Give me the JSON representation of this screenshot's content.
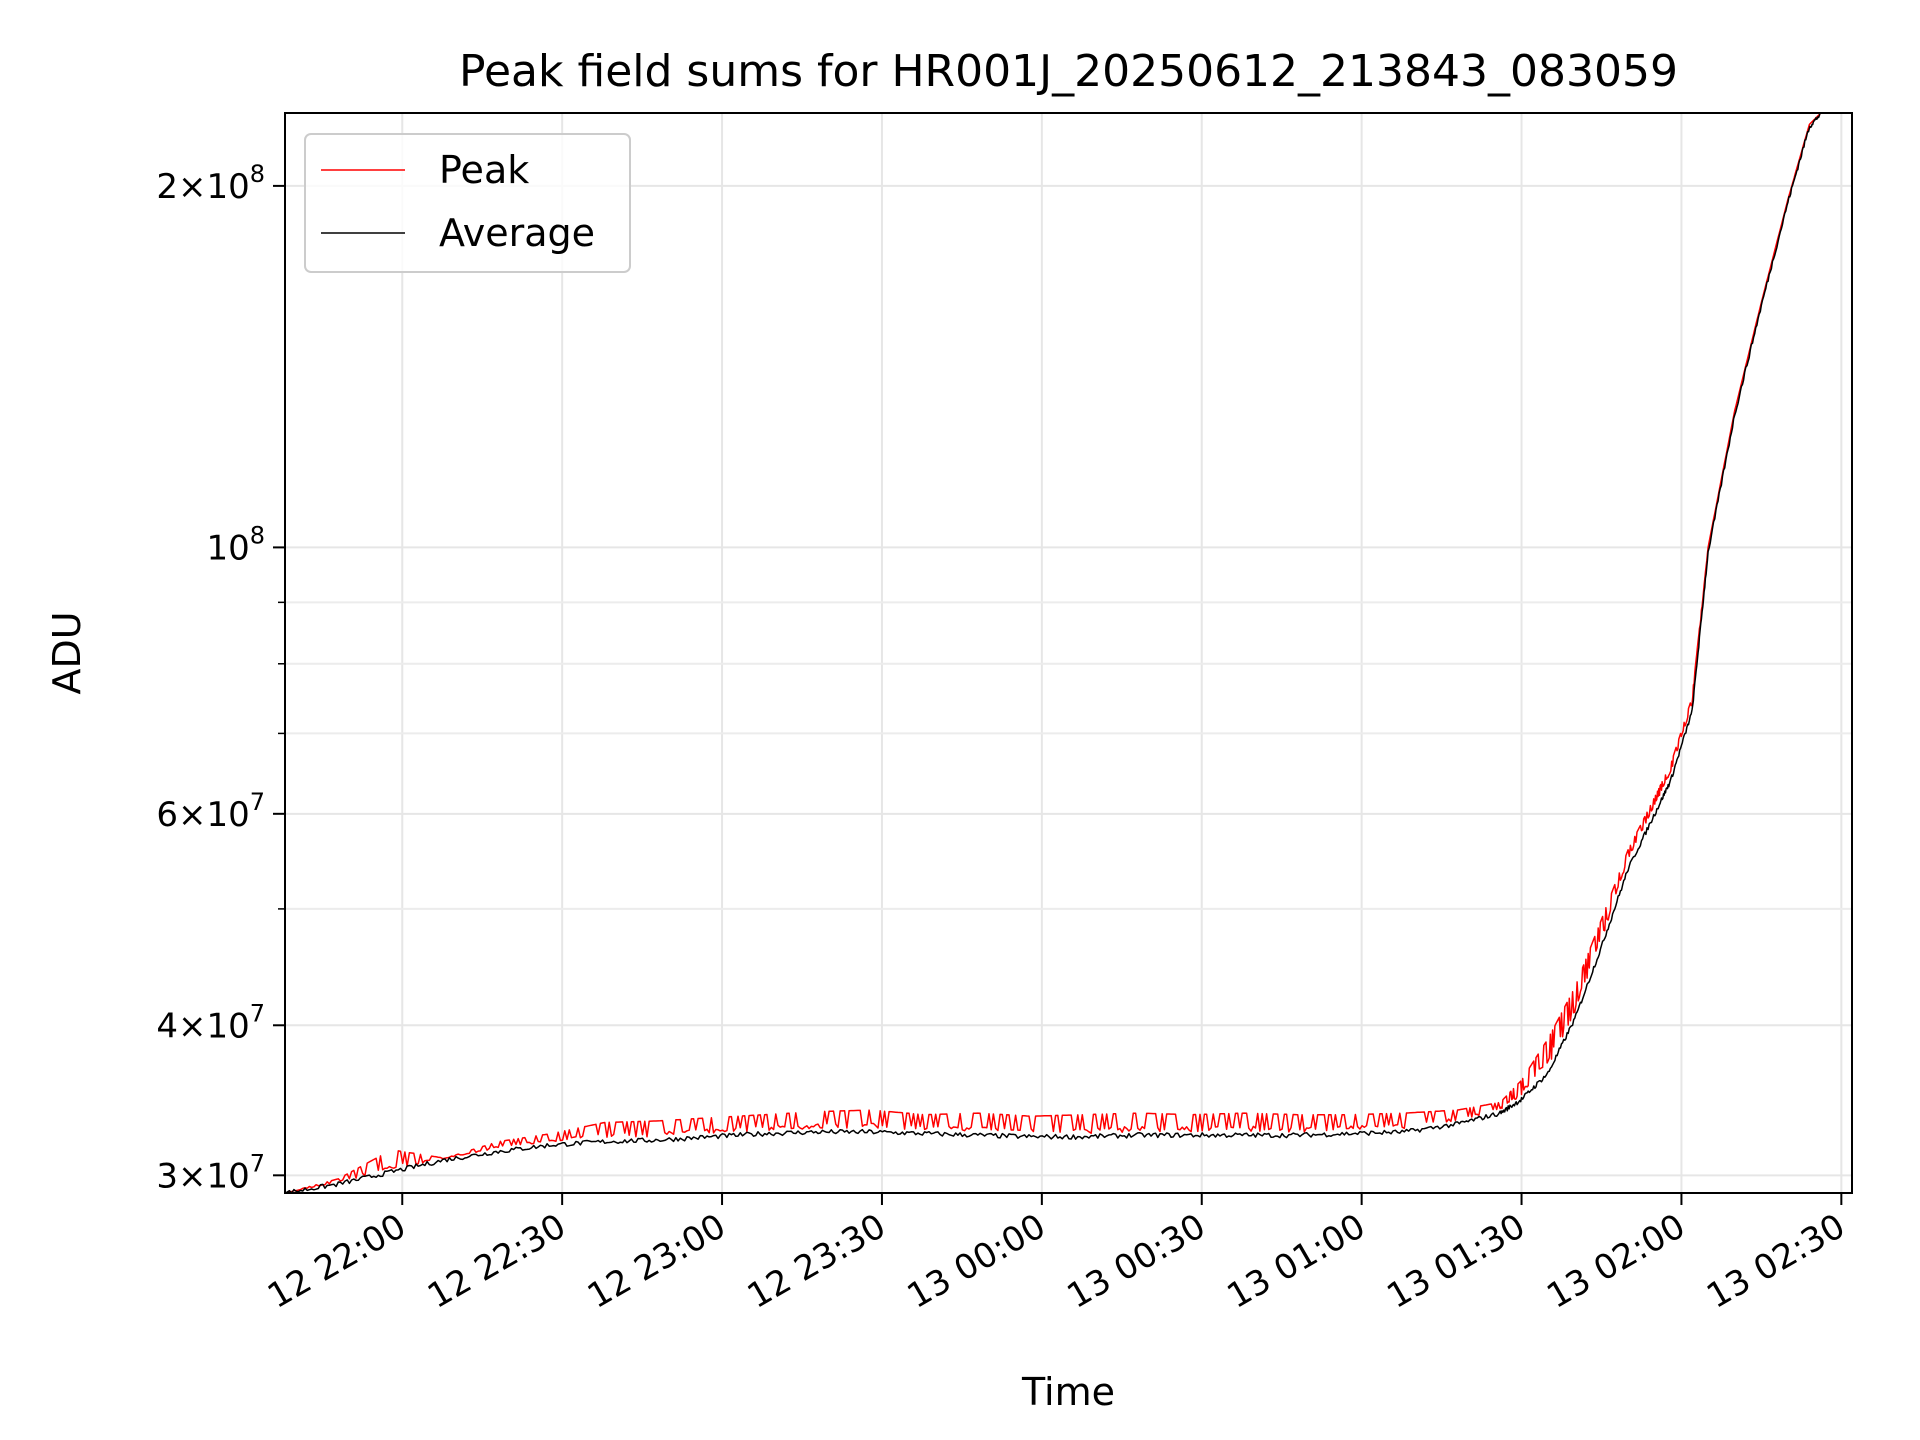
{
  "chart_data": {
    "type": "line",
    "title": "Peak field sums for HR001J_20250612_213843_083059",
    "xlabel": "Time",
    "ylabel": "ADU",
    "y_scale": "log",
    "ylim": [
      29000000,
      230000000
    ],
    "xlim": [
      "12 21:38",
      "13 02:32"
    ],
    "grid": true,
    "legend_position": "upper-left",
    "x_ticks": [
      {
        "value": "12 22:00",
        "label": "12 22:00"
      },
      {
        "value": "12 22:30",
        "label": "12 22:30"
      },
      {
        "value": "12 23:00",
        "label": "12 23:00"
      },
      {
        "value": "12 23:30",
        "label": "12 23:30"
      },
      {
        "value": "13 00:00",
        "label": "13 00:00"
      },
      {
        "value": "13 00:30",
        "label": "13 00:30"
      },
      {
        "value": "13 01:00",
        "label": "13 01:00"
      },
      {
        "value": "13 01:30",
        "label": "13 01:30"
      },
      {
        "value": "13 02:00",
        "label": "13 02:00"
      },
      {
        "value": "13 02:30",
        "label": "13 02:30"
      }
    ],
    "y_ticks": [
      {
        "value": 30000000,
        "mantissa": "3",
        "exp": "7"
      },
      {
        "value": 40000000,
        "mantissa": "4",
        "exp": "7"
      },
      {
        "value": 60000000,
        "mantissa": "6",
        "exp": "7"
      },
      {
        "value": 100000000,
        "mantissa": "",
        "exp": "8"
      },
      {
        "value": 200000000,
        "mantissa": "2",
        "exp": "8"
      }
    ],
    "y_minor_ticks": [
      50000000,
      70000000,
      80000000,
      90000000
    ],
    "series": [
      {
        "name": "Peak",
        "color": "#ff0000",
        "x": [
          "12 21:38",
          "12 21:48",
          "12 21:58",
          "12 22:08",
          "12 22:18",
          "12 22:28",
          "12 22:38",
          "12 22:48",
          "12 22:58",
          "12 23:08",
          "12 23:18",
          "12 23:28",
          "12 23:38",
          "12 23:48",
          "12 23:58",
          "13 00:08",
          "13 00:18",
          "13 00:28",
          "13 00:38",
          "13 00:48",
          "13 00:58",
          "13 01:08",
          "13 01:18",
          "13 01:26",
          "13 01:30",
          "13 01:35",
          "13 01:40",
          "13 01:45",
          "13 01:50",
          "13 01:55",
          "13 01:58",
          "13 02:02",
          "13 02:05",
          "13 02:10",
          "13 02:15",
          "13 02:20",
          "13 02:24",
          "13 02:27"
        ],
        "y": [
          29000000,
          29800000,
          31500000,
          31000000,
          32000000,
          32500000,
          33200000,
          33300000,
          33500000,
          33700000,
          33900000,
          34000000,
          33700000,
          33800000,
          33600000,
          33700000,
          33800000,
          33700000,
          33800000,
          33700000,
          33700000,
          33800000,
          34000000,
          34500000,
          36000000,
          39000000,
          43000000,
          49000000,
          56000000,
          62000000,
          66000000,
          75000000,
          100000000,
          130000000,
          160000000,
          195000000,
          225000000,
          232000000
        ],
        "y_low": [
          29000000,
          29600000,
          30300000,
          31000000,
          31600000,
          32000000,
          32200000,
          32300000,
          32500000,
          32700000,
          32800000,
          32800000,
          32700000,
          32600000,
          32500000,
          32500000,
          32600000,
          32600000,
          32600000,
          32600000,
          32700000,
          32800000,
          33300000,
          34000000,
          35000000,
          37000000,
          41000000,
          47000000,
          55000000,
          61000000,
          65000000,
          74000000,
          100000000,
          130000000,
          160000000,
          195000000,
          225000000,
          232000000
        ]
      },
      {
        "name": "Average",
        "color": "#000000",
        "x": [
          "12 21:38",
          "12 21:48",
          "12 21:58",
          "12 22:08",
          "12 22:18",
          "12 22:28",
          "12 22:38",
          "12 22:48",
          "12 22:58",
          "12 23:08",
          "12 23:18",
          "12 23:28",
          "12 23:38",
          "12 23:48",
          "12 23:58",
          "13 00:08",
          "13 00:18",
          "13 00:28",
          "13 00:38",
          "13 00:48",
          "13 00:58",
          "13 01:08",
          "13 01:18",
          "13 01:26",
          "13 01:30",
          "13 01:35",
          "13 01:40",
          "13 01:45",
          "13 01:50",
          "13 01:55",
          "13 01:58",
          "13 02:02",
          "13 02:05",
          "13 02:10",
          "13 02:15",
          "13 02:20",
          "13 02:24",
          "13 02:27"
        ],
        "y": [
          29000000,
          29500000,
          30200000,
          30900000,
          31400000,
          31800000,
          32000000,
          32100000,
          32300000,
          32500000,
          32600000,
          32600000,
          32500000,
          32400000,
          32300000,
          32300000,
          32400000,
          32400000,
          32400000,
          32400000,
          32500000,
          32600000,
          33100000,
          33800000,
          34700000,
          36500000,
          40500000,
          46500000,
          54000000,
          60000000,
          64000000,
          73000000,
          99000000,
          129000000,
          159000000,
          194000000,
          224000000,
          232000000
        ]
      }
    ]
  }
}
